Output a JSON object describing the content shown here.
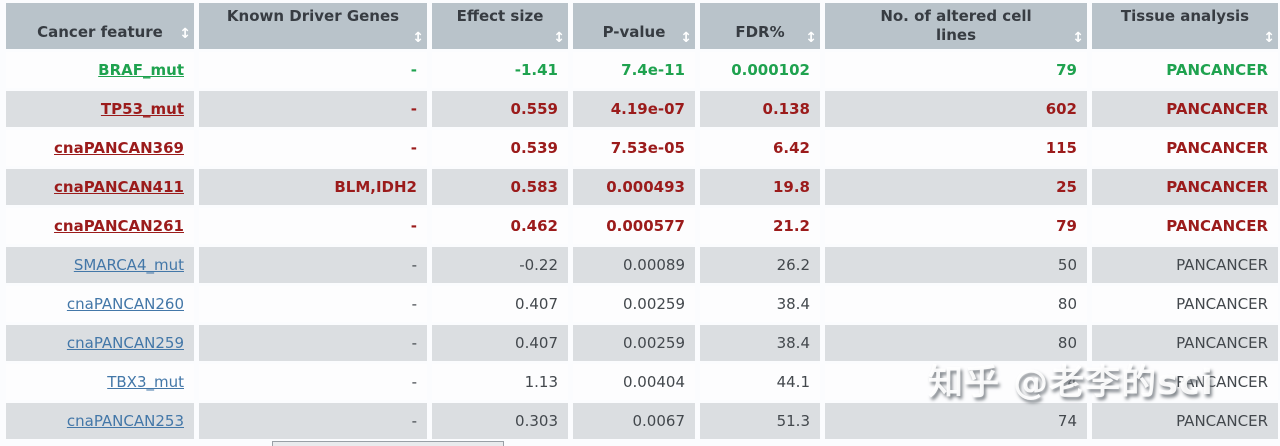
{
  "sort_icon_glyph": "↕",
  "watermark": {
    "text": "知乎 @老李的sci"
  },
  "colors": {
    "header_bg": "#b9c3ca",
    "row_alt_bg": "#dbdee1",
    "significant_green": "#1fa24f",
    "significant_dark_red": "#9b1b1b",
    "link_blue": "#4377a8",
    "plain_text": "#43484d"
  },
  "table": {
    "columns": [
      {
        "label": "Cancer feature"
      },
      {
        "label": "Known Driver Genes"
      },
      {
        "label": "Effect size"
      },
      {
        "label": "P-value"
      },
      {
        "label": "FDR%"
      },
      {
        "label": "No. of altered cell lines"
      },
      {
        "label": "Tissue analysis"
      }
    ],
    "rows": [
      {
        "style": "green",
        "feature": "BRAF_mut",
        "driver_genes": "-",
        "effect_size": "-1.41",
        "p_value": "7.4e-11",
        "fdr_pct": "0.000102",
        "altered_cell_lines": "79",
        "tissue": "PANCANCER"
      },
      {
        "style": "red",
        "feature": "TP53_mut",
        "driver_genes": "-",
        "effect_size": "0.559",
        "p_value": "4.19e-07",
        "fdr_pct": "0.138",
        "altered_cell_lines": "602",
        "tissue": "PANCANCER"
      },
      {
        "style": "red",
        "feature": "cnaPANCAN369",
        "driver_genes": "-",
        "effect_size": "0.539",
        "p_value": "7.53e-05",
        "fdr_pct": "6.42",
        "altered_cell_lines": "115",
        "tissue": "PANCANCER"
      },
      {
        "style": "red",
        "feature": "cnaPANCAN411",
        "driver_genes": "BLM,IDH2",
        "effect_size": "0.583",
        "p_value": "0.000493",
        "fdr_pct": "19.8",
        "altered_cell_lines": "25",
        "tissue": "PANCANCER"
      },
      {
        "style": "red",
        "feature": "cnaPANCAN261",
        "driver_genes": "-",
        "effect_size": "0.462",
        "p_value": "0.000577",
        "fdr_pct": "21.2",
        "altered_cell_lines": "79",
        "tissue": "PANCANCER"
      },
      {
        "style": "plain",
        "feature": "SMARCA4_mut",
        "driver_genes": "-",
        "effect_size": "-0.22",
        "p_value": "0.00089",
        "fdr_pct": "26.2",
        "altered_cell_lines": "50",
        "tissue": "PANCANCER"
      },
      {
        "style": "plain",
        "feature": "cnaPANCAN260",
        "driver_genes": "-",
        "effect_size": "0.407",
        "p_value": "0.00259",
        "fdr_pct": "38.4",
        "altered_cell_lines": "80",
        "tissue": "PANCANCER"
      },
      {
        "style": "plain",
        "feature": "cnaPANCAN259",
        "driver_genes": "-",
        "effect_size": "0.407",
        "p_value": "0.00259",
        "fdr_pct": "38.4",
        "altered_cell_lines": "80",
        "tissue": "PANCANCER"
      },
      {
        "style": "plain",
        "feature": "TBX3_mut",
        "driver_genes": "-",
        "effect_size": "1.13",
        "p_value": "0.00404",
        "fdr_pct": "44.1",
        "altered_cell_lines": "4",
        "tissue": "PANCANCER"
      },
      {
        "style": "plain",
        "feature": "cnaPANCAN253",
        "driver_genes": "-",
        "effect_size": "0.303",
        "p_value": "0.0067",
        "fdr_pct": "51.3",
        "altered_cell_lines": "74",
        "tissue": "PANCANCER"
      }
    ]
  }
}
